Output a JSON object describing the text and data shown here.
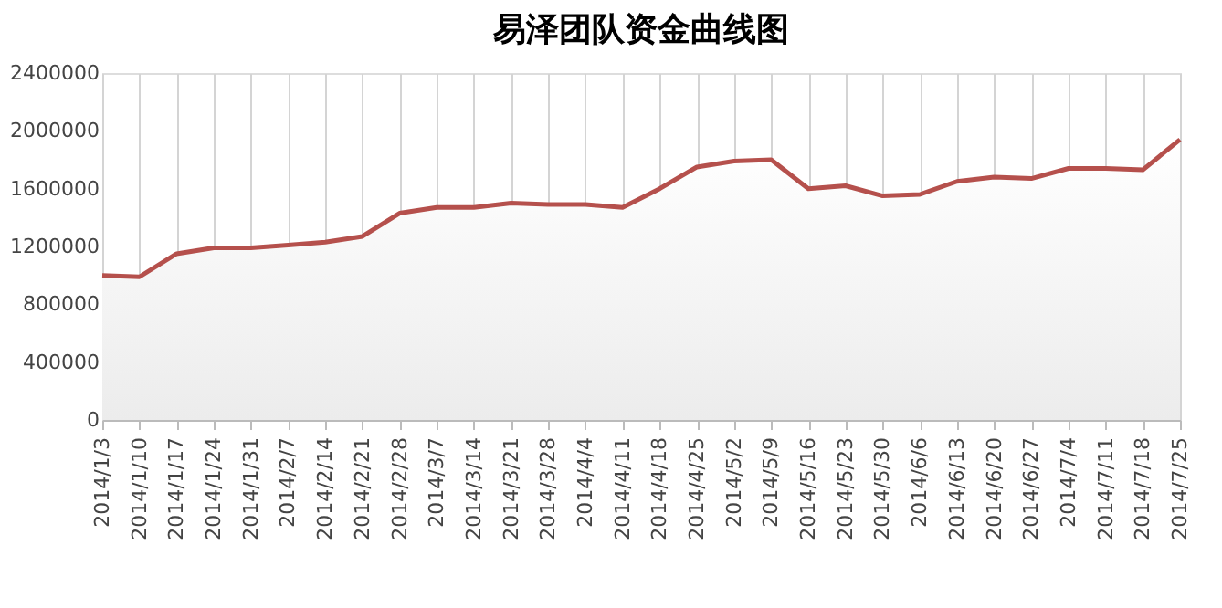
{
  "chart_data": {
    "type": "area",
    "title": "易泽团队资金曲线图",
    "categories": [
      "2014/1/3",
      "2014/1/10",
      "2014/1/17",
      "2014/1/24",
      "2014/1/31",
      "2014/2/7",
      "2014/2/14",
      "2014/2/21",
      "2014/2/28",
      "2014/3/7",
      "2014/3/14",
      "2014/3/21",
      "2014/3/28",
      "2014/4/4",
      "2014/4/11",
      "2014/4/18",
      "2014/4/25",
      "2014/5/2",
      "2014/5/9",
      "2014/5/16",
      "2014/5/23",
      "2014/5/30",
      "2014/6/6",
      "2014/6/13",
      "2014/6/20",
      "2014/6/27",
      "2014/7/4",
      "2014/7/11",
      "2014/7/18",
      "2014/7/25"
    ],
    "series": [
      {
        "color": "#b5504c",
        "values": [
          1000000,
          990000,
          1150000,
          1190000,
          1190000,
          1210000,
          1230000,
          1270000,
          1430000,
          1470000,
          1470000,
          1500000,
          1490000,
          1490000,
          1470000,
          1600000,
          1750000,
          1790000,
          1800000,
          1600000,
          1620000,
          1550000,
          1560000,
          1650000,
          1680000,
          1670000,
          1740000,
          1740000,
          1730000,
          1940000
        ]
      }
    ],
    "ylim": [
      0,
      2400000
    ],
    "yticks": [
      0,
      400000,
      800000,
      1200000,
      1600000,
      2000000,
      2400000
    ],
    "grid": "x",
    "marker": "none",
    "line_style": "solid"
  }
}
